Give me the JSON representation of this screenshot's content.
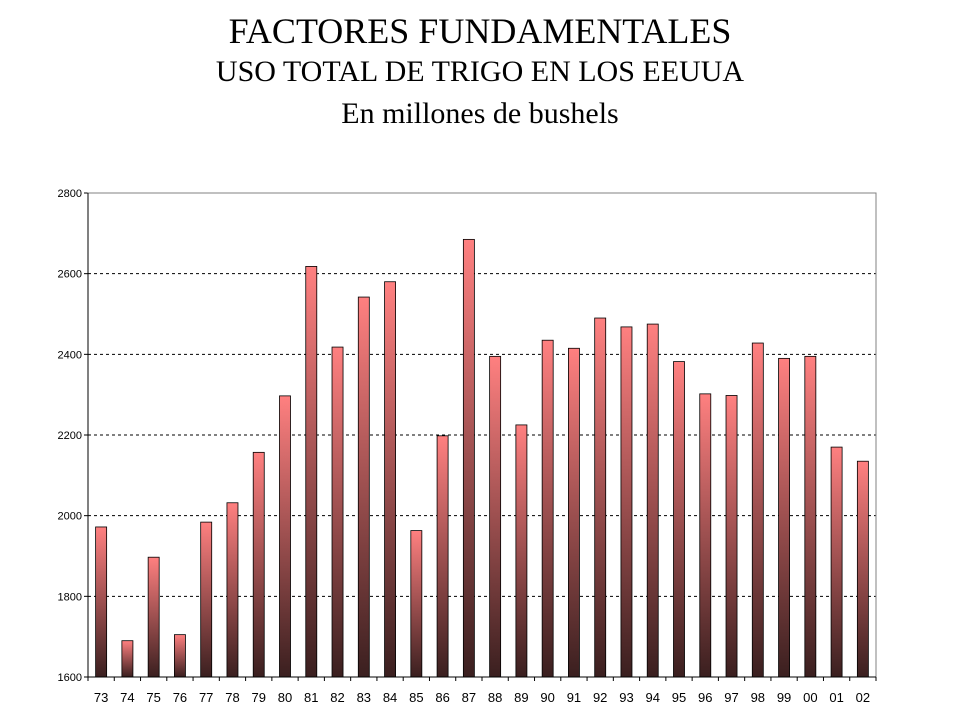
{
  "title": "FACTORES FUNDAMENTALES",
  "subtitle": "USO TOTAL DE TRIGO EN LOS EEUUA",
  "subtitle2": "En millones de bushels",
  "chart_data": {
    "type": "bar",
    "title": "FACTORES FUNDAMENTALES",
    "subtitle": "USO TOTAL DE TRIGO EN LOS EEUUA",
    "ylabel": "",
    "xlabel": "",
    "unit": "En millones de bushels",
    "ylim": [
      1600,
      2800
    ],
    "yticks": [
      1600,
      1800,
      2000,
      2200,
      2400,
      2600,
      2800
    ],
    "grid": true,
    "legend": "none",
    "bar_color_top": "#ff8080",
    "bar_color_bottom": "#3a1f1f",
    "categories": [
      "73",
      "74",
      "75",
      "76",
      "77",
      "78",
      "79",
      "80",
      "81",
      "82",
      "83",
      "84",
      "85",
      "86",
      "87",
      "88",
      "89",
      "90",
      "91",
      "92",
      "93",
      "94",
      "95",
      "96",
      "97",
      "98",
      "99",
      "00",
      "01",
      "02"
    ],
    "values": [
      1972,
      1690,
      1897,
      1705,
      1984,
      2032,
      2157,
      2297,
      2618,
      2418,
      2542,
      2580,
      1963,
      2198,
      2685,
      2395,
      2225,
      2435,
      2415,
      2490,
      2468,
      2475,
      2382,
      2302,
      2298,
      2428,
      2390,
      2395,
      2170,
      2135
    ]
  }
}
